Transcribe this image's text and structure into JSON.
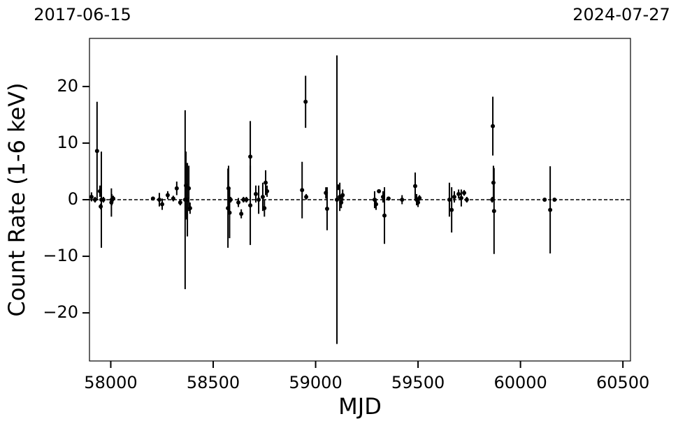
{
  "chart_data": {
    "type": "scatter",
    "annotations": [
      "2017-06-15",
      "2024-07-27"
    ],
    "x_label": "MJD",
    "y_label": "Count Rate (1-6 keV)",
    "xlim": [
      57896,
      60537
    ],
    "ylim": [
      -28.5,
      28.5
    ],
    "xticks": [
      58000,
      58500,
      59000,
      59500,
      60000,
      60500
    ],
    "yticks": [
      {
        "value": -20,
        "label": "−20"
      },
      {
        "value": -10,
        "label": "−10"
      },
      0,
      10,
      20
    ],
    "hline": 0,
    "color": "#000000",
    "series": [
      {
        "name": "Count Rate",
        "x": [
          57906,
          57923,
          57933,
          57947,
          57951,
          57954,
          57964,
          58003,
          58005,
          58012,
          58206,
          58237,
          58251,
          58278,
          58305,
          58322,
          58339,
          58363,
          58367,
          58374,
          58381,
          58387,
          58575,
          58572,
          58585,
          58580,
          58623,
          58637,
          58648,
          58662,
          58681,
          58681,
          58708,
          58722,
          58742,
          58750,
          58756,
          58763,
          58934,
          58951,
          58954,
          59050,
          59056,
          59104,
          59111,
          59118,
          59125,
          59132,
          59288,
          59295,
          59309,
          59329,
          59336,
          59356,
          59422,
          59486,
          59493,
          59500,
          59507,
          59653,
          59664,
          59677,
          59698,
          59711,
          59725,
          59738,
          59862,
          59865,
          59868,
          59871,
          60118,
          60145,
          60166
        ],
        "y": [
          0.5,
          0,
          8.6,
          1.5,
          -1.2,
          0,
          0,
          -0.5,
          0,
          0.2,
          0.2,
          0,
          -0.8,
          0.8,
          0.2,
          2,
          -0.5,
          0,
          2.5,
          0,
          2,
          -1.5,
          2,
          -1.5,
          0,
          -2.3,
          -0.5,
          -2.5,
          0,
          0,
          7.6,
          -1,
          1,
          0,
          0.5,
          -1.5,
          3,
          1.5,
          1.7,
          17.3,
          0.5,
          1.2,
          -1.6,
          0,
          2.2,
          0.5,
          -0.5,
          0.8,
          0,
          -0.8,
          1.5,
          0.5,
          -2.8,
          0.2,
          0,
          2.4,
          0,
          -0.5,
          0.3,
          0,
          -1.8,
          0.5,
          1,
          0.3,
          1.2,
          0,
          0,
          13,
          3,
          -2,
          0,
          -1.8,
          0
        ],
        "err": [
          0.8,
          0.5,
          8.7,
          1,
          0.5,
          8.5,
          0.5,
          2.5,
          1,
          0.5,
          0.3,
          1.2,
          1,
          0.7,
          0.5,
          1.2,
          0.5,
          15.8,
          6,
          6.5,
          4,
          1,
          4,
          7,
          0.5,
          4.5,
          0.8,
          0.8,
          0.5,
          0.5,
          6.3,
          7,
          1.5,
          2.5,
          2.5,
          1.5,
          2.2,
          1,
          5,
          4.6,
          0.5,
          1,
          3.8,
          25.5,
          0.5,
          2.5,
          1,
          1,
          1.5,
          1,
          0.3,
          1,
          5,
          0.3,
          0.8,
          2.4,
          1,
          0.8,
          0.5,
          3,
          4,
          1,
          0.8,
          1.5,
          0.5,
          0.5,
          0.5,
          5.2,
          3,
          7.6,
          0.3,
          7.7,
          0.3
        ]
      }
    ]
  }
}
